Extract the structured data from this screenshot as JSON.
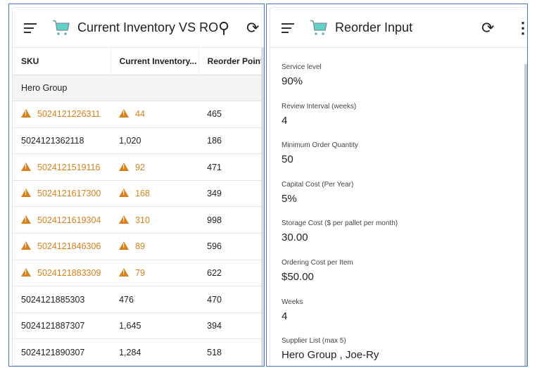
{
  "left": {
    "title": "Current Inventory VS ROP",
    "columns": [
      "SKU",
      "Current Inventory...",
      "Reorder Point"
    ],
    "group": "Hero Group",
    "rows": [
      {
        "sku": "5024121226311",
        "inv": "44",
        "rop": "465",
        "warn": true
      },
      {
        "sku": "5024121362118",
        "inv": "1,020",
        "rop": "186",
        "warn": false
      },
      {
        "sku": "5024121519116",
        "inv": "92",
        "rop": "471",
        "warn": true
      },
      {
        "sku": "5024121617300",
        "inv": "168",
        "rop": "349",
        "warn": true
      },
      {
        "sku": "5024121619304",
        "inv": "310",
        "rop": "998",
        "warn": true
      },
      {
        "sku": "5024121846306",
        "inv": "89",
        "rop": "596",
        "warn": true
      },
      {
        "sku": "5024121883309",
        "inv": "79",
        "rop": "622",
        "warn": true
      },
      {
        "sku": "5024121885303",
        "inv": "476",
        "rop": "470",
        "warn": false
      },
      {
        "sku": "5024121887307",
        "inv": "1,645",
        "rop": "394",
        "warn": false
      },
      {
        "sku": "5024121890307",
        "inv": "1,284",
        "rop": "518",
        "warn": false
      }
    ]
  },
  "right": {
    "title": "Reorder Input",
    "fields": [
      {
        "label": "Service level",
        "value": "90%"
      },
      {
        "label": "Review Interval (weeks)",
        "value": "4"
      },
      {
        "label": "Minimum Order Quantity",
        "value": "50"
      },
      {
        "label": "Capital Cost (Per Year)",
        "value": "5%"
      },
      {
        "label": "Storage Cost ($ per pallet per month)",
        "value": "30.00"
      },
      {
        "label": "Ordering Cost per Item",
        "value": "$50.00"
      },
      {
        "label": "Weeks",
        "value": "4"
      },
      {
        "label": "Supplier List (max 5)",
        "value": "Hero Group , Joe-Ry"
      }
    ]
  },
  "colors": {
    "warning": "#d9801a",
    "cart": "#5fd3c4",
    "border": "#4a74c9"
  }
}
